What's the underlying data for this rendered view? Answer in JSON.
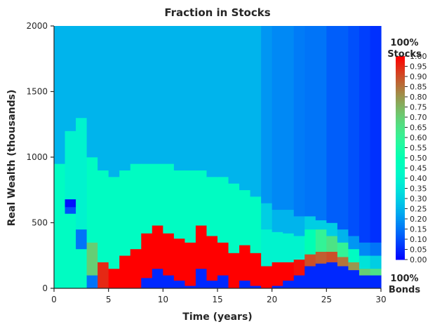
{
  "chart_data": {
    "type": "heatmap",
    "title": "Fraction in Stocks",
    "xlabel": "Time (years)",
    "ylabel": "Real Wealth (thousands)",
    "x_range": [
      0,
      30
    ],
    "y_range": [
      0,
      2000
    ],
    "x_ticks": [
      "0",
      "5",
      "10",
      "15",
      "20",
      "25",
      "30"
    ],
    "y_ticks": [
      "0",
      "500",
      "1000",
      "1500",
      "2000"
    ],
    "colorbar": {
      "colormap": "rainbow",
      "range": [
        0,
        1
      ],
      "ticks": [
        "0.00",
        "0.05",
        "0.10",
        "0.15",
        "0.20",
        "0.25",
        "0.30",
        "0.35",
        "0.40",
        "0.45",
        "0.50",
        "0.55",
        "0.60",
        "0.65",
        "0.70",
        "0.75",
        "0.80",
        "0.85",
        "0.90",
        "0.95",
        "1.00"
      ],
      "top_label": [
        "100%",
        "Stocks"
      ],
      "bottom_label": [
        "100%",
        "Bonds"
      ]
    },
    "columns": [
      {
        "t": 0,
        "segments": [
          [
            0,
            950,
            0.45
          ],
          [
            950,
            2000,
            0.25
          ]
        ]
      },
      {
        "t": 1,
        "segments": [
          [
            0,
            570,
            0.45
          ],
          [
            570,
            620,
            0.1
          ],
          [
            620,
            680,
            0.02
          ],
          [
            680,
            1200,
            0.4
          ],
          [
            1200,
            2000,
            0.25
          ]
        ]
      },
      {
        "t": 2,
        "segments": [
          [
            0,
            300,
            0.45
          ],
          [
            300,
            450,
            0.15
          ],
          [
            450,
            1300,
            0.4
          ],
          [
            1300,
            2000,
            0.25
          ]
        ]
      },
      {
        "t": 3,
        "segments": [
          [
            0,
            100,
            0.15
          ],
          [
            100,
            350,
            0.7
          ],
          [
            350,
            1000,
            0.45
          ],
          [
            1000,
            2000,
            0.25
          ]
        ]
      },
      {
        "t": 4,
        "segments": [
          [
            0,
            200,
            0.95
          ],
          [
            200,
            900,
            0.45
          ],
          [
            900,
            2000,
            0.25
          ]
        ]
      },
      {
        "t": 5,
        "segments": [
          [
            0,
            150,
            1.0
          ],
          [
            150,
            850,
            0.45
          ],
          [
            850,
            2000,
            0.25
          ]
        ]
      },
      {
        "t": 6,
        "segments": [
          [
            0,
            250,
            1.0
          ],
          [
            250,
            900,
            0.45
          ],
          [
            900,
            2000,
            0.25
          ]
        ]
      },
      {
        "t": 7,
        "segments": [
          [
            0,
            300,
            1.0
          ],
          [
            300,
            950,
            0.45
          ],
          [
            950,
            2000,
            0.25
          ]
        ]
      },
      {
        "t": 8,
        "segments": [
          [
            0,
            80,
            0.05
          ],
          [
            80,
            420,
            1.0
          ],
          [
            420,
            950,
            0.45
          ],
          [
            950,
            2000,
            0.25
          ]
        ]
      },
      {
        "t": 9,
        "segments": [
          [
            0,
            150,
            0.05
          ],
          [
            150,
            480,
            1.0
          ],
          [
            480,
            950,
            0.45
          ],
          [
            950,
            2000,
            0.25
          ]
        ]
      },
      {
        "t": 10,
        "segments": [
          [
            0,
            100,
            0.05
          ],
          [
            100,
            420,
            1.0
          ],
          [
            420,
            950,
            0.45
          ],
          [
            950,
            2000,
            0.25
          ]
        ]
      },
      {
        "t": 11,
        "segments": [
          [
            0,
            60,
            0.05
          ],
          [
            60,
            380,
            1.0
          ],
          [
            380,
            900,
            0.45
          ],
          [
            900,
            2000,
            0.25
          ]
        ]
      },
      {
        "t": 12,
        "segments": [
          [
            0,
            20,
            0.05
          ],
          [
            20,
            350,
            1.0
          ],
          [
            350,
            900,
            0.45
          ],
          [
            900,
            2000,
            0.25
          ]
        ]
      },
      {
        "t": 13,
        "segments": [
          [
            0,
            150,
            0.05
          ],
          [
            150,
            480,
            1.0
          ],
          [
            480,
            900,
            0.45
          ],
          [
            900,
            2000,
            0.25
          ]
        ]
      },
      {
        "t": 14,
        "segments": [
          [
            0,
            60,
            0.05
          ],
          [
            60,
            400,
            1.0
          ],
          [
            400,
            850,
            0.45
          ],
          [
            850,
            2000,
            0.25
          ]
        ]
      },
      {
        "t": 15,
        "segments": [
          [
            0,
            100,
            0.05
          ],
          [
            100,
            350,
            1.0
          ],
          [
            350,
            850,
            0.45
          ],
          [
            850,
            2000,
            0.25
          ]
        ]
      },
      {
        "t": 16,
        "segments": [
          [
            0,
            0,
            0.05
          ],
          [
            0,
            270,
            1.0
          ],
          [
            270,
            800,
            0.45
          ],
          [
            800,
            2000,
            0.25
          ]
        ]
      },
      {
        "t": 17,
        "segments": [
          [
            0,
            60,
            0.05
          ],
          [
            60,
            330,
            1.0
          ],
          [
            330,
            750,
            0.45
          ],
          [
            750,
            2000,
            0.25
          ]
        ]
      },
      {
        "t": 18,
        "segments": [
          [
            0,
            20,
            0.05
          ],
          [
            20,
            270,
            1.0
          ],
          [
            270,
            700,
            0.45
          ],
          [
            700,
            2000,
            0.25
          ]
        ]
      },
      {
        "t": 19,
        "segments": [
          [
            0,
            0,
            0.05
          ],
          [
            0,
            170,
            1.0
          ],
          [
            170,
            450,
            0.4
          ],
          [
            450,
            650,
            0.3
          ],
          [
            650,
            2000,
            0.2
          ]
        ]
      },
      {
        "t": 20,
        "segments": [
          [
            0,
            20,
            0.05
          ],
          [
            20,
            200,
            1.0
          ],
          [
            200,
            430,
            0.4
          ],
          [
            430,
            600,
            0.25
          ],
          [
            600,
            2000,
            0.18
          ]
        ]
      },
      {
        "t": 21,
        "segments": [
          [
            0,
            60,
            0.05
          ],
          [
            60,
            200,
            1.0
          ],
          [
            200,
            420,
            0.4
          ],
          [
            420,
            600,
            0.25
          ],
          [
            600,
            2000,
            0.18
          ]
        ]
      },
      {
        "t": 22,
        "segments": [
          [
            0,
            100,
            0.05
          ],
          [
            100,
            220,
            0.98
          ],
          [
            220,
            400,
            0.4
          ],
          [
            400,
            550,
            0.25
          ],
          [
            550,
            2000,
            0.16
          ]
        ]
      },
      {
        "t": 23,
        "segments": [
          [
            0,
            170,
            0.05
          ],
          [
            170,
            260,
            0.9
          ],
          [
            260,
            450,
            0.5
          ],
          [
            450,
            550,
            0.3
          ],
          [
            550,
            2000,
            0.15
          ]
        ]
      },
      {
        "t": 24,
        "segments": [
          [
            0,
            190,
            0.05
          ],
          [
            190,
            280,
            0.88
          ],
          [
            280,
            450,
            0.6
          ],
          [
            450,
            520,
            0.3
          ],
          [
            520,
            2000,
            0.15
          ]
        ]
      },
      {
        "t": 25,
        "segments": [
          [
            0,
            200,
            0.05
          ],
          [
            200,
            280,
            0.9
          ],
          [
            280,
            400,
            0.65
          ],
          [
            400,
            500,
            0.3
          ],
          [
            500,
            2000,
            0.12
          ]
        ]
      },
      {
        "t": 26,
        "segments": [
          [
            0,
            170,
            0.05
          ],
          [
            170,
            240,
            0.85
          ],
          [
            240,
            350,
            0.6
          ],
          [
            350,
            450,
            0.25
          ],
          [
            450,
            2000,
            0.12
          ]
        ]
      },
      {
        "t": 27,
        "segments": [
          [
            0,
            140,
            0.05
          ],
          [
            140,
            200,
            0.8
          ],
          [
            200,
            300,
            0.45
          ],
          [
            300,
            400,
            0.2
          ],
          [
            400,
            2000,
            0.1
          ]
        ]
      },
      {
        "t": 28,
        "segments": [
          [
            0,
            100,
            0.05
          ],
          [
            100,
            150,
            0.7
          ],
          [
            150,
            250,
            0.35
          ],
          [
            250,
            350,
            0.18
          ],
          [
            350,
            2000,
            0.08
          ]
        ]
      },
      {
        "t": 29,
        "segments": [
          [
            0,
            100,
            0.05
          ],
          [
            100,
            150,
            0.65
          ],
          [
            150,
            250,
            0.3
          ],
          [
            250,
            350,
            0.15
          ],
          [
            350,
            2000,
            0.06
          ]
        ]
      }
    ]
  }
}
